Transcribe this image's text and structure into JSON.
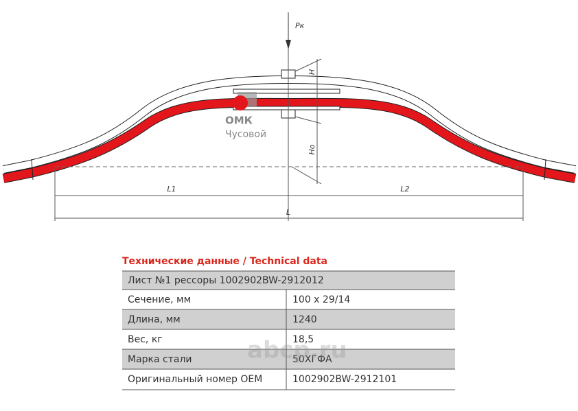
{
  "drawing": {
    "labels": {
      "pk": "Pк",
      "h": "H",
      "h0": "Hо",
      "l1": "L1",
      "l2": "L2",
      "l": "L"
    }
  },
  "logo": {
    "name": "ОМК",
    "city": "Чусовой"
  },
  "watermark": "abcp.ru",
  "table": {
    "title": "Технические данные / Technical data",
    "header": "Лист №1 рессоры 1002902BW-2912012",
    "rows": [
      [
        "Сечение, мм",
        "100 x 29/14"
      ],
      [
        "Длина, мм",
        "1240"
      ],
      [
        "Вес, кг",
        "18,5"
      ],
      [
        "Марка стали",
        "50ХГФА"
      ],
      [
        "Оригинальный номер OEM",
        "1002902BW-2912101"
      ]
    ]
  }
}
